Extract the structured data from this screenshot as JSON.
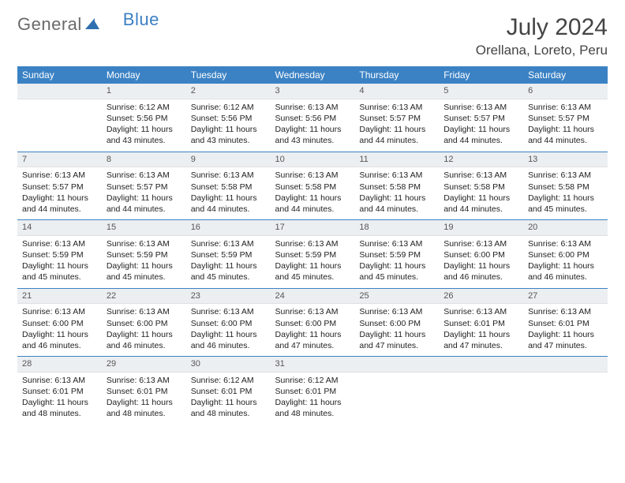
{
  "logo": {
    "part1": "General",
    "part2": "Blue"
  },
  "title": "July 2024",
  "location": "Orellana, Loreto, Peru",
  "colors": {
    "header_bg": "#3b82c4",
    "header_text": "#ffffff",
    "daynum_bg": "#eceff1",
    "week_sep": "#3b82c4",
    "body_text": "#222222",
    "logo_gray": "#6a6a6a",
    "logo_blue": "#3b7fc4"
  },
  "weekdays": [
    "Sunday",
    "Monday",
    "Tuesday",
    "Wednesday",
    "Thursday",
    "Friday",
    "Saturday"
  ],
  "weeks": [
    [
      null,
      {
        "n": "1",
        "sr": "6:12 AM",
        "ss": "5:56 PM",
        "dl": "11 hours and 43 minutes."
      },
      {
        "n": "2",
        "sr": "6:12 AM",
        "ss": "5:56 PM",
        "dl": "11 hours and 43 minutes."
      },
      {
        "n": "3",
        "sr": "6:13 AM",
        "ss": "5:56 PM",
        "dl": "11 hours and 43 minutes."
      },
      {
        "n": "4",
        "sr": "6:13 AM",
        "ss": "5:57 PM",
        "dl": "11 hours and 44 minutes."
      },
      {
        "n": "5",
        "sr": "6:13 AM",
        "ss": "5:57 PM",
        "dl": "11 hours and 44 minutes."
      },
      {
        "n": "6",
        "sr": "6:13 AM",
        "ss": "5:57 PM",
        "dl": "11 hours and 44 minutes."
      }
    ],
    [
      {
        "n": "7",
        "sr": "6:13 AM",
        "ss": "5:57 PM",
        "dl": "11 hours and 44 minutes."
      },
      {
        "n": "8",
        "sr": "6:13 AM",
        "ss": "5:57 PM",
        "dl": "11 hours and 44 minutes."
      },
      {
        "n": "9",
        "sr": "6:13 AM",
        "ss": "5:58 PM",
        "dl": "11 hours and 44 minutes."
      },
      {
        "n": "10",
        "sr": "6:13 AM",
        "ss": "5:58 PM",
        "dl": "11 hours and 44 minutes."
      },
      {
        "n": "11",
        "sr": "6:13 AM",
        "ss": "5:58 PM",
        "dl": "11 hours and 44 minutes."
      },
      {
        "n": "12",
        "sr": "6:13 AM",
        "ss": "5:58 PM",
        "dl": "11 hours and 44 minutes."
      },
      {
        "n": "13",
        "sr": "6:13 AM",
        "ss": "5:58 PM",
        "dl": "11 hours and 45 minutes."
      }
    ],
    [
      {
        "n": "14",
        "sr": "6:13 AM",
        "ss": "5:59 PM",
        "dl": "11 hours and 45 minutes."
      },
      {
        "n": "15",
        "sr": "6:13 AM",
        "ss": "5:59 PM",
        "dl": "11 hours and 45 minutes."
      },
      {
        "n": "16",
        "sr": "6:13 AM",
        "ss": "5:59 PM",
        "dl": "11 hours and 45 minutes."
      },
      {
        "n": "17",
        "sr": "6:13 AM",
        "ss": "5:59 PM",
        "dl": "11 hours and 45 minutes."
      },
      {
        "n": "18",
        "sr": "6:13 AM",
        "ss": "5:59 PM",
        "dl": "11 hours and 45 minutes."
      },
      {
        "n": "19",
        "sr": "6:13 AM",
        "ss": "6:00 PM",
        "dl": "11 hours and 46 minutes."
      },
      {
        "n": "20",
        "sr": "6:13 AM",
        "ss": "6:00 PM",
        "dl": "11 hours and 46 minutes."
      }
    ],
    [
      {
        "n": "21",
        "sr": "6:13 AM",
        "ss": "6:00 PM",
        "dl": "11 hours and 46 minutes."
      },
      {
        "n": "22",
        "sr": "6:13 AM",
        "ss": "6:00 PM",
        "dl": "11 hours and 46 minutes."
      },
      {
        "n": "23",
        "sr": "6:13 AM",
        "ss": "6:00 PM",
        "dl": "11 hours and 46 minutes."
      },
      {
        "n": "24",
        "sr": "6:13 AM",
        "ss": "6:00 PM",
        "dl": "11 hours and 47 minutes."
      },
      {
        "n": "25",
        "sr": "6:13 AM",
        "ss": "6:00 PM",
        "dl": "11 hours and 47 minutes."
      },
      {
        "n": "26",
        "sr": "6:13 AM",
        "ss": "6:01 PM",
        "dl": "11 hours and 47 minutes."
      },
      {
        "n": "27",
        "sr": "6:13 AM",
        "ss": "6:01 PM",
        "dl": "11 hours and 47 minutes."
      }
    ],
    [
      {
        "n": "28",
        "sr": "6:13 AM",
        "ss": "6:01 PM",
        "dl": "11 hours and 48 minutes."
      },
      {
        "n": "29",
        "sr": "6:13 AM",
        "ss": "6:01 PM",
        "dl": "11 hours and 48 minutes."
      },
      {
        "n": "30",
        "sr": "6:12 AM",
        "ss": "6:01 PM",
        "dl": "11 hours and 48 minutes."
      },
      {
        "n": "31",
        "sr": "6:12 AM",
        "ss": "6:01 PM",
        "dl": "11 hours and 48 minutes."
      },
      null,
      null,
      null
    ]
  ],
  "labels": {
    "sunrise": "Sunrise:",
    "sunset": "Sunset:",
    "daylight": "Daylight:"
  }
}
